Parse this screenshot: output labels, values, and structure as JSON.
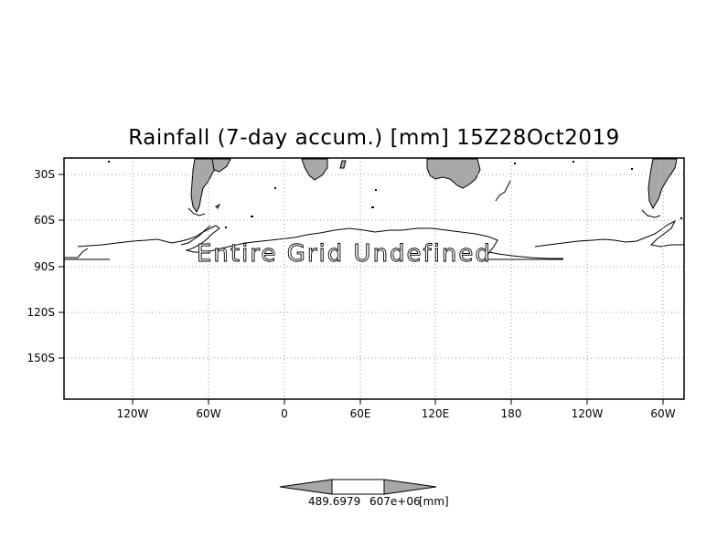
{
  "title": "Rainfall (7-day accum.) [mm] 15Z28Oct2019",
  "overlay_text": "Entire Grid Undefined",
  "lat_labels": [
    "30S",
    "60S",
    "90S",
    "120S",
    "150S"
  ],
  "lon_labels": [
    "120W",
    "60W",
    "0",
    "60E",
    "120E",
    "180",
    "120W",
    "60W"
  ],
  "colorbar": {
    "left_value": "489.6979",
    "right_value": "607e+06",
    "unit": "[mm]"
  },
  "colors": {
    "land": "#a8a8a8",
    "grid": "#9a9a9a",
    "frame": "#000000"
  }
}
